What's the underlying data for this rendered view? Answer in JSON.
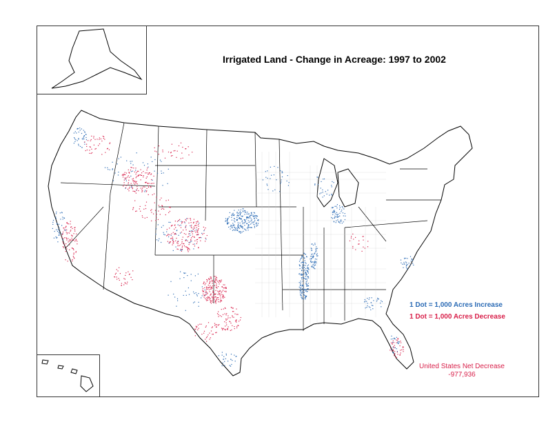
{
  "title": "Irrigated Land - Change in Acreage:  1997 to 2002",
  "legend": {
    "increase_label": "1 Dot = 1,000 Acres Increase",
    "decrease_label": "1 Dot = 1,000 Acres Decrease",
    "increase_color": "#2b6bb5",
    "decrease_color": "#d8204a"
  },
  "net": {
    "label": "United States Net Decrease",
    "value": "-977,936"
  },
  "colors": {
    "border": "#333333",
    "county_lines": "#bbbbbb"
  }
}
